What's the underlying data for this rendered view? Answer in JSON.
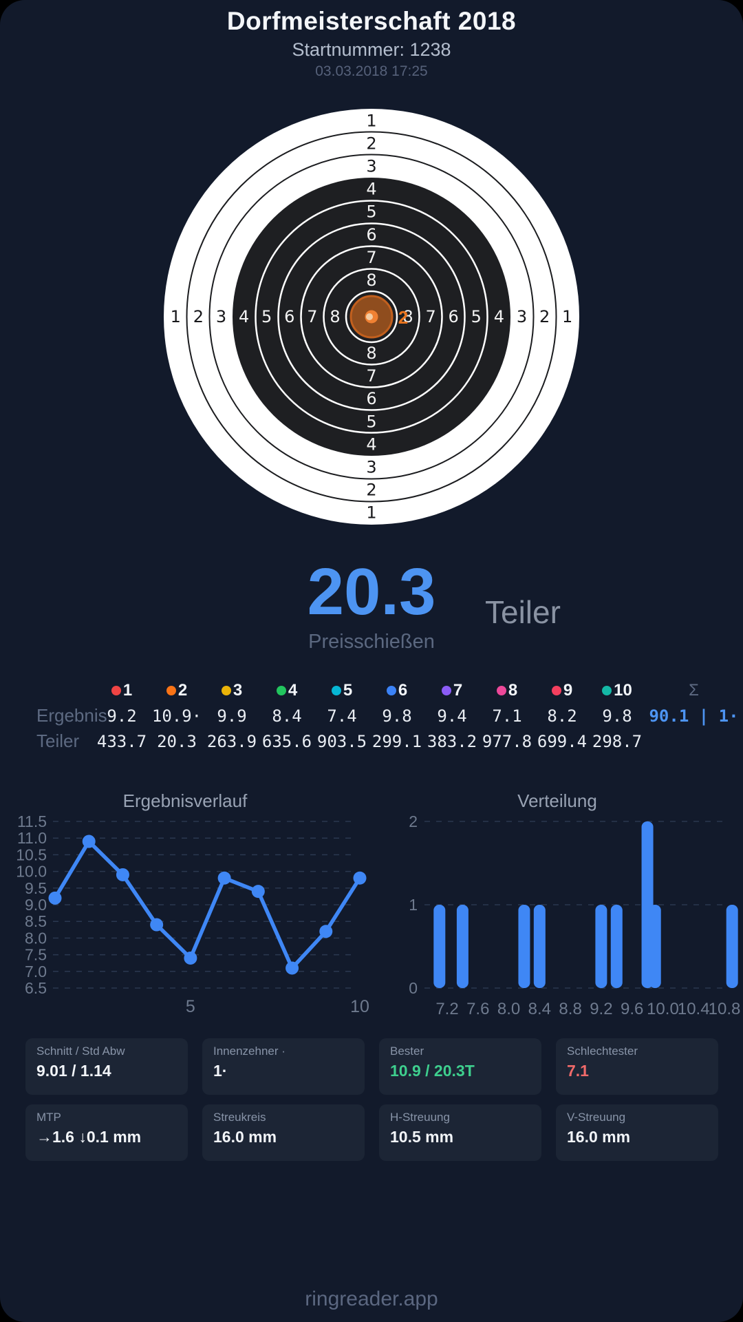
{
  "colors": {
    "background": "#121a2b",
    "card": "#1c2535",
    "accent_blue": "#4d94f2",
    "chart_blue": "#3f87f5",
    "grid": "#2b3850",
    "axis_label": "#6e7a8e",
    "green": "#3ecf8e",
    "red": "#f16a6a"
  },
  "header": {
    "title": "Dorfmeisterschaft 2018",
    "subtitle": "Startnummer: 1238",
    "datetime": "03.03.2018 17:25"
  },
  "target": {
    "rings": [
      1,
      2,
      3,
      4,
      5,
      6,
      7,
      8
    ],
    "black_from": 4,
    "shot": {
      "label": "2",
      "color": "#e8741f"
    }
  },
  "score": {
    "value": "20.3",
    "unit": "Teiler",
    "subtitle": "Preisschießen"
  },
  "table": {
    "row_labels": {
      "ergebnis": "Ergebnis",
      "teiler": "Teiler"
    },
    "sum_symbol": "Σ",
    "shots": [
      {
        "nr": "1",
        "color": "#ef4444",
        "ergebnis": "9.2",
        "teiler": "433.7"
      },
      {
        "nr": "2",
        "color": "#f97316",
        "ergebnis": "10.9·",
        "teiler": "20.3"
      },
      {
        "nr": "3",
        "color": "#eab308",
        "ergebnis": "9.9",
        "teiler": "263.9"
      },
      {
        "nr": "4",
        "color": "#22c55e",
        "ergebnis": "8.4",
        "teiler": "635.6"
      },
      {
        "nr": "5",
        "color": "#06b6d4",
        "ergebnis": "7.4",
        "teiler": "903.5"
      },
      {
        "nr": "6",
        "color": "#3b82f6",
        "ergebnis": "9.8",
        "teiler": "299.1"
      },
      {
        "nr": "7",
        "color": "#8b5cf6",
        "ergebnis": "9.4",
        "teiler": "383.2"
      },
      {
        "nr": "8",
        "color": "#ec4899",
        "ergebnis": "7.1",
        "teiler": "977.8"
      },
      {
        "nr": "9",
        "color": "#f43f5e",
        "ergebnis": "8.2",
        "teiler": "699.4"
      },
      {
        "nr": "10",
        "color": "#14b8a6",
        "ergebnis": "9.8",
        "teiler": "298.7"
      }
    ],
    "sum": "90.1 | 1·"
  },
  "chart_data": [
    {
      "type": "line",
      "title": "Ergebnisverlauf",
      "x": [
        1,
        2,
        3,
        4,
        5,
        6,
        7,
        8,
        9,
        10
      ],
      "values": [
        9.2,
        10.9,
        9.9,
        8.4,
        7.4,
        9.8,
        9.4,
        7.1,
        8.2,
        9.8
      ],
      "ylim": [
        6.5,
        11.5
      ],
      "yticks": [
        11.5,
        11.0,
        10.5,
        10.0,
        9.5,
        9.0,
        8.5,
        8.0,
        7.5,
        7.0,
        6.5
      ],
      "xticks": [
        5,
        10
      ],
      "grid": "dashed",
      "legend_position": "none"
    },
    {
      "type": "bar",
      "title": "Verteilung",
      "bins": [
        7.1,
        7.4,
        8.2,
        8.4,
        9.2,
        9.4,
        9.8,
        9.9,
        10.9
      ],
      "counts": [
        1,
        1,
        1,
        1,
        1,
        1,
        2,
        1,
        1
      ],
      "ylim": [
        0,
        2
      ],
      "yticks": [
        2,
        1,
        0
      ],
      "xticks": [
        7.2,
        7.6,
        8.0,
        8.4,
        8.8,
        9.2,
        9.6,
        10.0,
        10.4,
        10.8
      ],
      "grid": "dashed",
      "legend_position": "none"
    }
  ],
  "stats": [
    {
      "label": "Schnitt / Std Abw",
      "value": "9.01 / 1.14",
      "color": "#f2f5f9"
    },
    {
      "label": "Innenzehner ·",
      "value": "1·",
      "color": "#f2f5f9"
    },
    {
      "label": "Bester",
      "value": "10.9 / 20.3T",
      "color": "#3ecf8e"
    },
    {
      "label": "Schlechtester",
      "value": "7.1",
      "color": "#f16a6a"
    },
    {
      "label": "MTP",
      "value": "→1.6 ↓0.1 mm",
      "color": "#f2f5f9"
    },
    {
      "label": "Streukreis",
      "value": "16.0 mm",
      "color": "#f2f5f9"
    },
    {
      "label": "H-Streuung",
      "value": "10.5 mm",
      "color": "#f2f5f9"
    },
    {
      "label": "V-Streuung",
      "value": "16.0 mm",
      "color": "#f2f5f9"
    }
  ],
  "footer": {
    "brand": "ringreader.app"
  }
}
